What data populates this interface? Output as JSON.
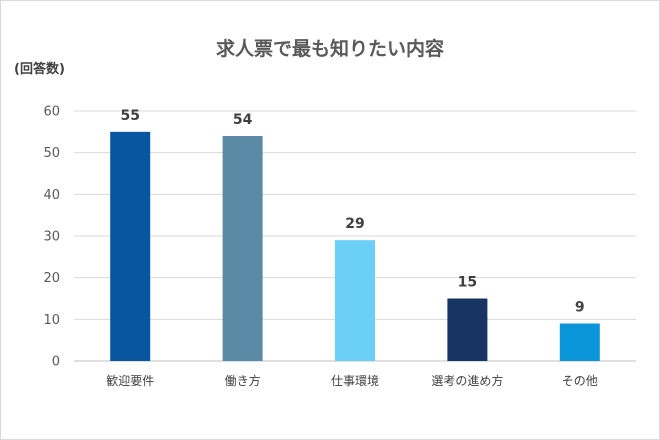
{
  "chart_data": {
    "type": "bar",
    "title": "求人票で最も知りたい内容",
    "ylabel": "(回答数)",
    "xlabel": "",
    "categories": [
      "歓迎要件",
      "働き方",
      "仕事環境",
      "選考の進め方",
      "その他"
    ],
    "values": [
      55,
      54,
      29,
      15,
      9
    ],
    "colors": [
      "#08569f",
      "#5b8aa6",
      "#6ccff6",
      "#173463",
      "#0a96d9"
    ],
    "ylim": [
      0,
      60
    ],
    "yticks": [
      0,
      10,
      20,
      30,
      40,
      50,
      60
    ],
    "grid": true,
    "legend": "none"
  }
}
